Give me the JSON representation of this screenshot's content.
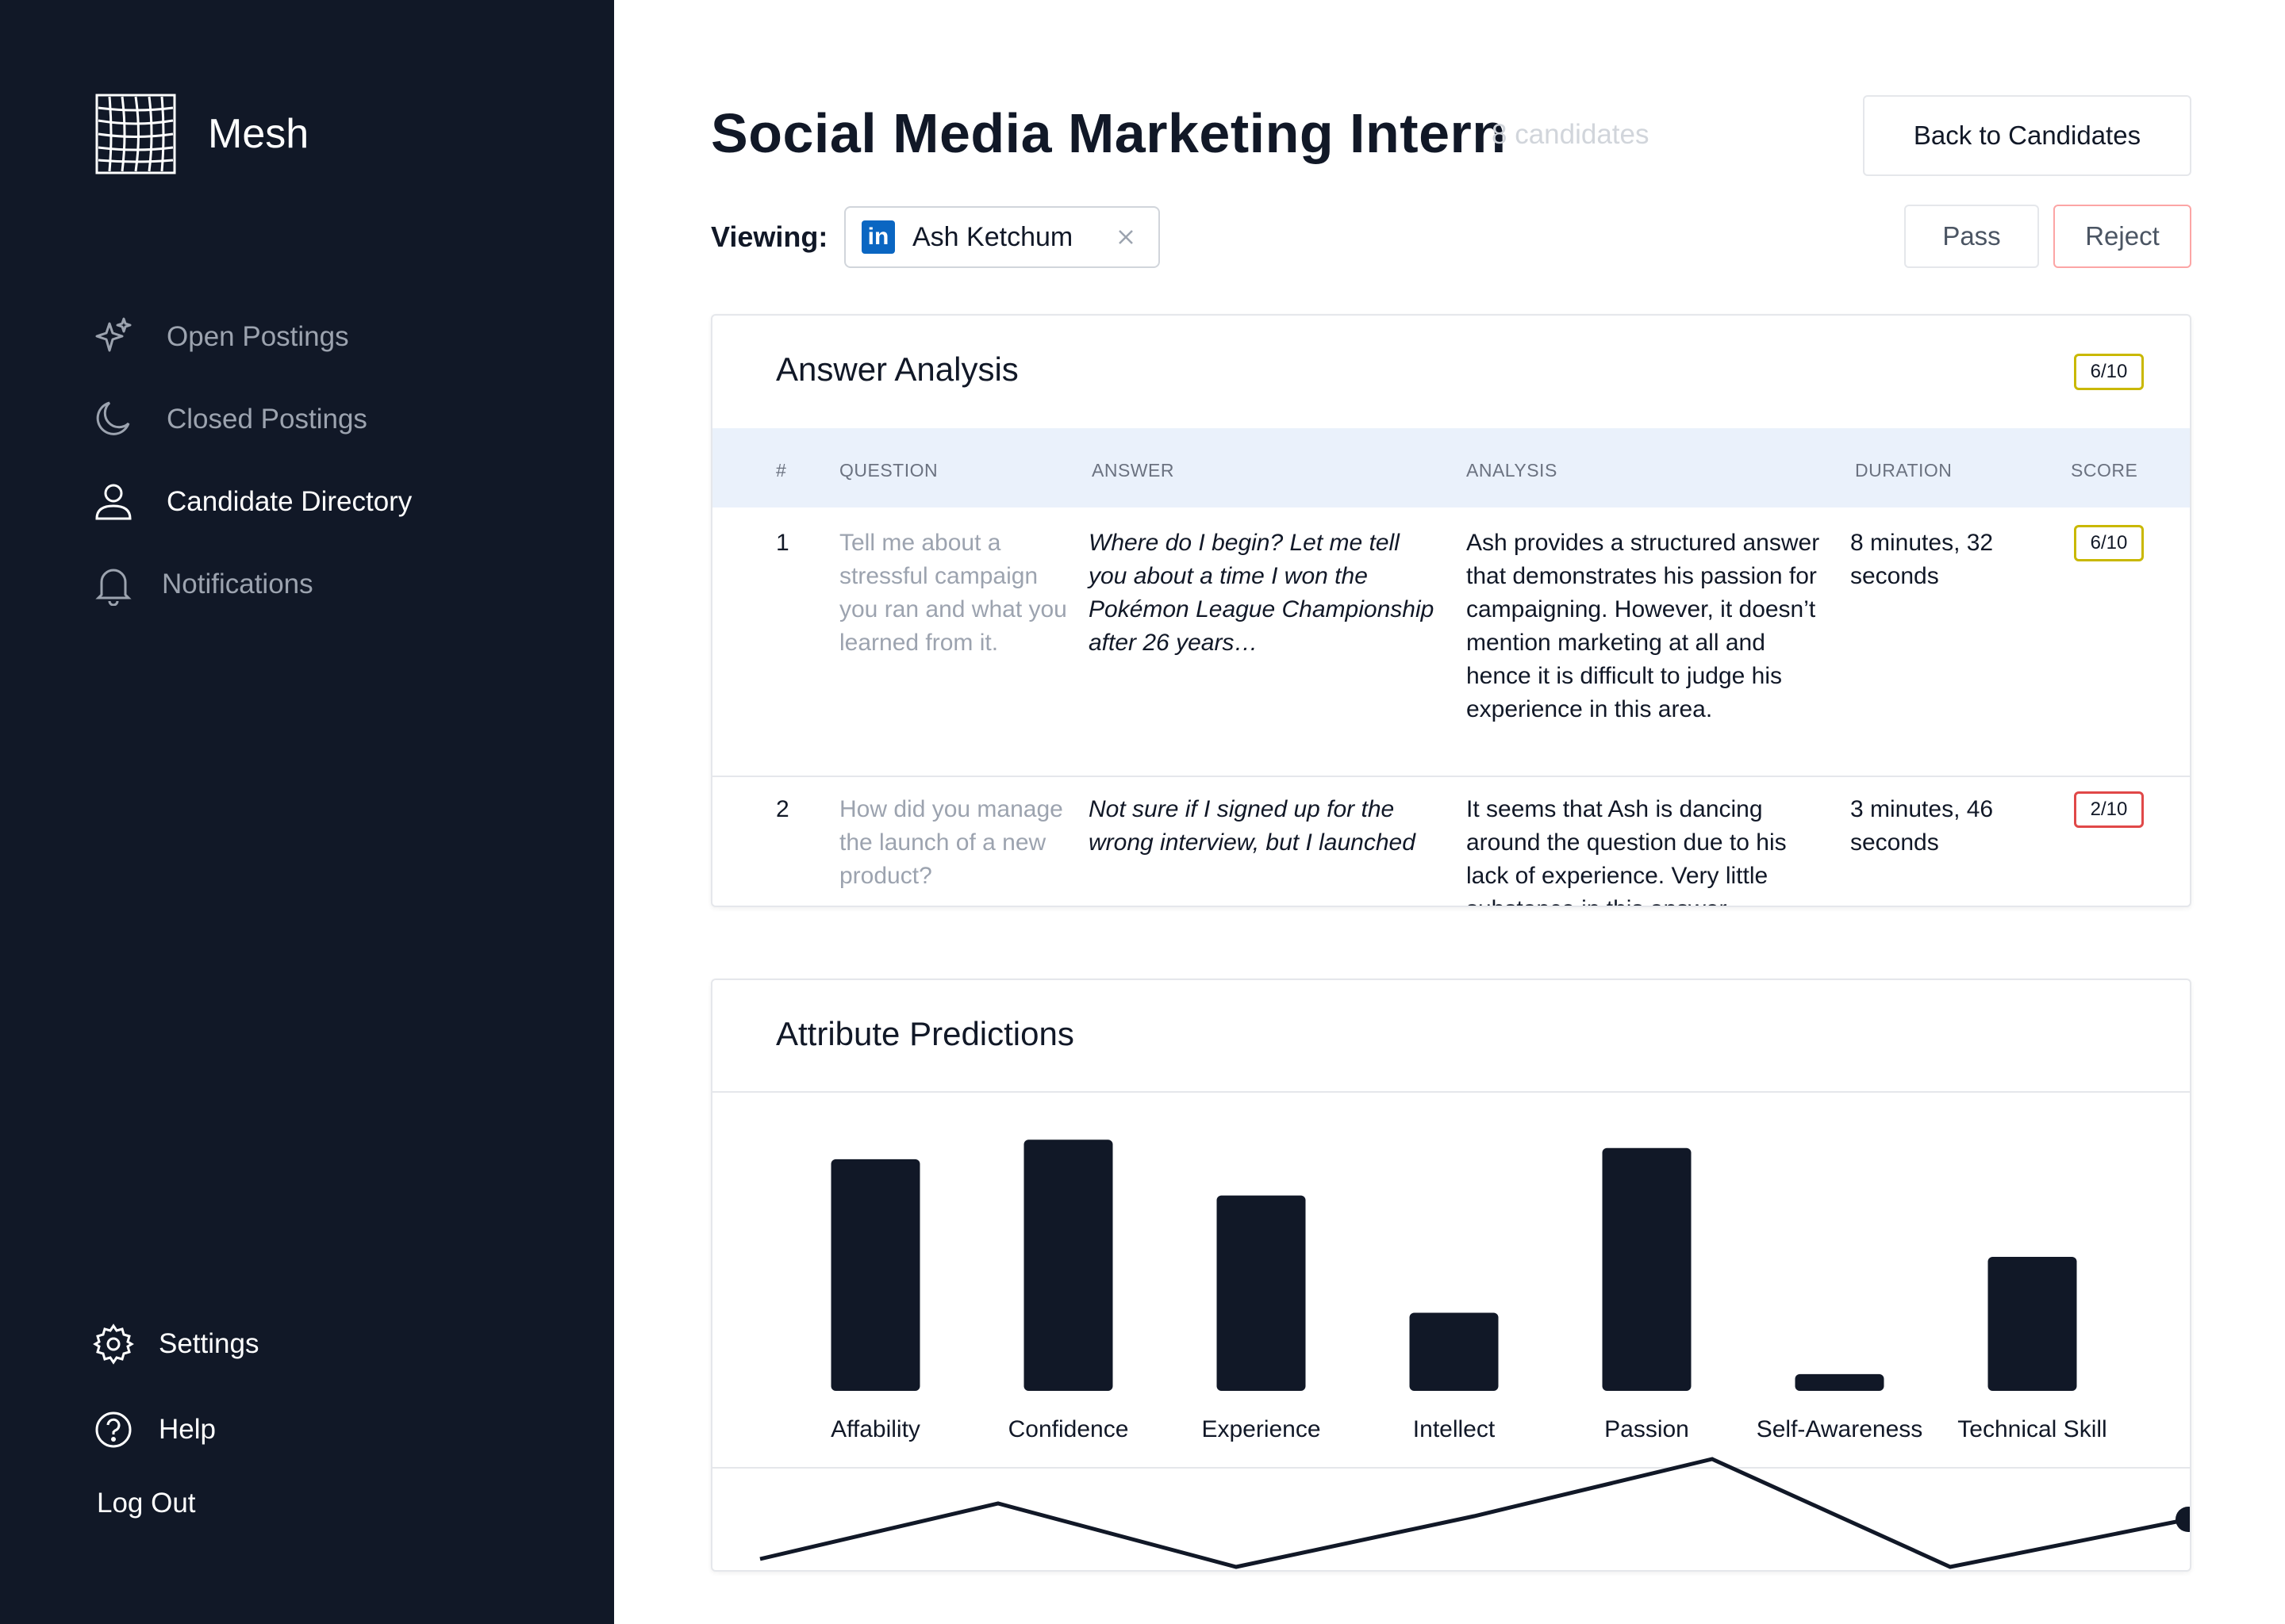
{
  "app": {
    "name": "Mesh"
  },
  "sidebar": {
    "nav": [
      {
        "label": "Open Postings",
        "icon": "sparkle-icon"
      },
      {
        "label": "Closed Postings",
        "icon": "moon-icon"
      },
      {
        "label": "Candidate Directory",
        "icon": "user-icon",
        "active": true
      },
      {
        "label": "Notifications",
        "icon": "bell-icon"
      }
    ],
    "bottom": [
      {
        "label": "Settings",
        "icon": "gear-icon"
      },
      {
        "label": "Help",
        "icon": "help-circle-icon"
      }
    ],
    "logout": "Log Out"
  },
  "header": {
    "title": "Social Media Marketing Intern",
    "candidate_count": "8 candidates",
    "back_button": "Back to Candidates",
    "viewing_label": "Viewing:",
    "viewing_candidate": "Ash Ketchum",
    "viewing_source_icon": "linkedin-icon",
    "pass_button": "Pass",
    "reject_button": "Reject"
  },
  "answer_analysis": {
    "title": "Answer Analysis",
    "overall_score": "6/10",
    "columns": [
      "#",
      "QUESTION",
      "ANSWER",
      "ANALYSIS",
      "DURATION",
      "SCORE"
    ],
    "rows": [
      {
        "num": "1",
        "question": "Tell me about a stressful campaign you ran and what you learned from it.",
        "answer": "Where do I begin? Let me tell you about a time I won the Pokémon League Championship after 26 years…",
        "analysis": "Ash provides a structured answer that demonstrates his passion for campaigning. However, it doesn’t mention marketing at all and hence it is difficult to judge his experience in this area.",
        "duration": "8 minutes, 32 seconds",
        "score": "6/10",
        "score_color": "#c9b800"
      },
      {
        "num": "2",
        "question": "How did you manage the launch of a new product?",
        "answer": "Not sure if I signed up for the wrong interview, but I launched",
        "analysis": "It seems that Ash is dancing around the question due to his lack of experience. Very little substance in this answer.",
        "duration": "3 minutes, 46 seconds",
        "score": "2/10",
        "score_color": "#e04848"
      }
    ]
  },
  "attribute_predictions": {
    "title": "Attribute Predictions"
  },
  "chart_data": {
    "type": "bar",
    "categories": [
      "Affability",
      "Confidence",
      "Experience",
      "Intellect",
      "Passion",
      "Self-Awareness",
      "Technical Skill"
    ],
    "values": [
      8.3,
      9.0,
      7.0,
      2.8,
      8.7,
      0.6,
      4.8
    ],
    "ylim": [
      0,
      10
    ],
    "bar_color": "#111827",
    "line_series": {
      "type": "line",
      "values": [
        2.5,
        6.0,
        2.0,
        5.2,
        8.8,
        2.0,
        5.0
      ],
      "ylim": [
        0,
        10
      ]
    }
  }
}
